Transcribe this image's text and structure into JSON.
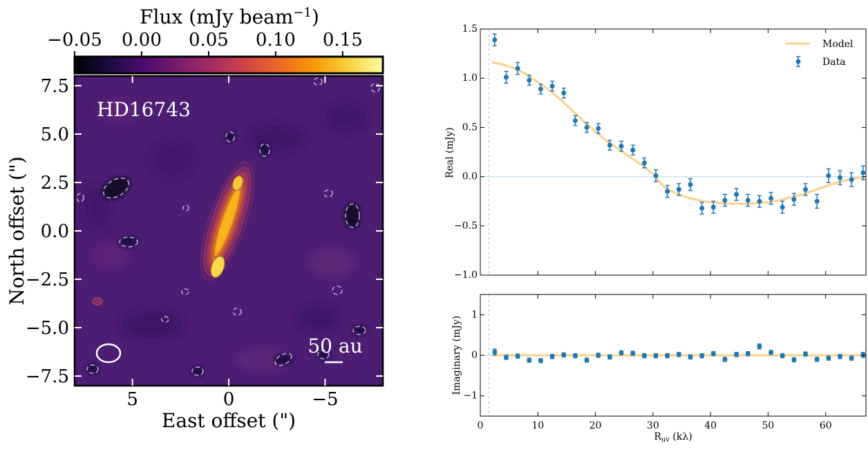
{
  "chart_data": [
    {
      "type": "heatmap",
      "title": "",
      "target_label": "HD16743",
      "colorbar": {
        "label": "Flux (mJy beam",
        "label_exp": "−1",
        "label_close": ")",
        "ticks": [
          -0.05,
          0.0,
          0.05,
          0.1,
          0.15
        ],
        "tick_labels": [
          "−0.05",
          "0.00",
          "0.05",
          "0.10",
          "0.15"
        ],
        "range": [
          -0.05,
          0.18
        ],
        "colormap": [
          "#000004",
          "#1b0c41",
          "#4a0c6b",
          "#781c6d",
          "#a52c60",
          "#cf4446",
          "#ed6925",
          "#fb9b06",
          "#f7d13d",
          "#fcffa4"
        ]
      },
      "xlabel": "East offset (\")",
      "ylabel": "North offset (\")",
      "xlim": [
        8,
        -8
      ],
      "ylim": [
        -8,
        8
      ],
      "xticks": [
        5,
        0,
        -5
      ],
      "xtick_labels": [
        "5",
        "0",
        "−5"
      ],
      "yticks": [
        7.5,
        5.0,
        2.5,
        0.0,
        -2.5,
        -5.0,
        -7.5
      ],
      "ytick_labels": [
        "7.5",
        "5.0",
        "2.5",
        "0.0",
        "−2.5",
        "−5.0",
        "−7.5"
      ],
      "scalebar_label": "50 au",
      "background_color": "#4b1d73"
    },
    {
      "type": "scatter",
      "ylabel": "Real (mJy)",
      "xlim": [
        0,
        67
      ],
      "ylim": [
        -1.0,
        1.5
      ],
      "yticks": [
        -1.0,
        -0.5,
        0.0,
        0.5,
        1.0,
        1.5
      ],
      "ytick_labels": [
        "−1.0",
        "−0.5",
        "0.0",
        "0.5",
        "1.0",
        "1.5"
      ],
      "legend": {
        "position": "top-right",
        "entries": [
          "Model",
          "Data"
        ]
      },
      "series": [
        {
          "name": "Data",
          "color": "#1f77b4",
          "x": [
            2.5,
            4.5,
            6.5,
            8.5,
            10.5,
            12.5,
            14.5,
            16.5,
            18.5,
            20.5,
            22.5,
            24.5,
            26.5,
            28.5,
            30.5,
            32.5,
            34.5,
            36.5,
            38.5,
            40.5,
            42.5,
            44.5,
            46.5,
            48.5,
            50.5,
            52.5,
            54.5,
            56.5,
            58.5,
            60.5,
            62.5,
            64.5,
            66.5
          ],
          "y": [
            1.39,
            1.01,
            1.1,
            0.98,
            0.89,
            0.92,
            0.85,
            0.57,
            0.5,
            0.49,
            0.32,
            0.31,
            0.27,
            0.14,
            0.01,
            -0.15,
            -0.13,
            -0.08,
            -0.32,
            -0.31,
            -0.24,
            -0.18,
            -0.24,
            -0.25,
            -0.22,
            -0.31,
            -0.23,
            -0.13,
            -0.25,
            0.01,
            -0.01,
            -0.03,
            0.04
          ],
          "err": [
            0.06,
            0.06,
            0.06,
            0.05,
            0.05,
            0.05,
            0.05,
            0.05,
            0.05,
            0.05,
            0.05,
            0.05,
            0.05,
            0.05,
            0.06,
            0.06,
            0.06,
            0.06,
            0.06,
            0.06,
            0.06,
            0.06,
            0.06,
            0.06,
            0.06,
            0.06,
            0.06,
            0.06,
            0.07,
            0.07,
            0.07,
            0.07,
            0.07
          ]
        },
        {
          "name": "Model",
          "color": "#fdd08a",
          "x": [
            2,
            4,
            6,
            8,
            10,
            12,
            14,
            16,
            18,
            20,
            22,
            24,
            26,
            28,
            30,
            32,
            34,
            36,
            38,
            40,
            42,
            44,
            46,
            48,
            50,
            52,
            54,
            56,
            58,
            60,
            62,
            64,
            66,
            67
          ],
          "y": [
            1.16,
            1.14,
            1.1,
            1.04,
            0.96,
            0.88,
            0.78,
            0.67,
            0.56,
            0.46,
            0.36,
            0.28,
            0.2,
            0.12,
            0.03,
            -0.11,
            -0.17,
            -0.21,
            -0.24,
            -0.26,
            -0.27,
            -0.275,
            -0.275,
            -0.27,
            -0.26,
            -0.24,
            -0.21,
            -0.18,
            -0.14,
            -0.1,
            -0.06,
            -0.03,
            -0.01,
            0.0
          ]
        }
      ]
    },
    {
      "type": "scatter",
      "ylabel": "Imaginary (mJy)",
      "xlabel": "R",
      "xlabel_sub": "uv",
      "xlabel_unit": " (kλ)",
      "xlim": [
        0,
        67
      ],
      "ylim": [
        -1.5,
        1.5
      ],
      "xticks": [
        0,
        10,
        20,
        30,
        40,
        50,
        60
      ],
      "yticks": [
        -1,
        0,
        1
      ],
      "ytick_labels": [
        "−1",
        "0",
        "1"
      ],
      "series": [
        {
          "name": "Data",
          "color": "#1f77b4",
          "x": [
            2.5,
            4.5,
            6.5,
            8.5,
            10.5,
            12.5,
            14.5,
            16.5,
            18.5,
            20.5,
            22.5,
            24.5,
            26.5,
            28.5,
            30.5,
            32.5,
            34.5,
            36.5,
            38.5,
            40.5,
            42.5,
            44.5,
            46.5,
            48.5,
            50.5,
            52.5,
            54.5,
            56.5,
            58.5,
            60.5,
            62.5,
            64.5,
            66.5
          ],
          "y": [
            0.08,
            -0.05,
            -0.02,
            -0.12,
            -0.13,
            -0.03,
            0.01,
            -0.01,
            -0.12,
            0.0,
            -0.04,
            0.06,
            0.05,
            -0.01,
            -0.01,
            -0.01,
            0.02,
            -0.04,
            -0.01,
            0.04,
            -0.1,
            0.02,
            0.04,
            0.22,
            0.07,
            -0.01,
            -0.11,
            0.03,
            -0.1,
            -0.07,
            -0.03,
            -0.07,
            0.01
          ],
          "err": [
            0.07,
            0.05,
            0.05,
            0.05,
            0.05,
            0.05,
            0.05,
            0.05,
            0.05,
            0.05,
            0.05,
            0.05,
            0.05,
            0.05,
            0.05,
            0.05,
            0.05,
            0.05,
            0.05,
            0.05,
            0.05,
            0.05,
            0.05,
            0.06,
            0.05,
            0.05,
            0.05,
            0.05,
            0.05,
            0.05,
            0.05,
            0.05,
            0.06
          ]
        },
        {
          "name": "Model",
          "color": "#fdd08a",
          "x": [
            2,
            67
          ],
          "y": [
            0.0,
            0.0
          ]
        }
      ]
    }
  ]
}
